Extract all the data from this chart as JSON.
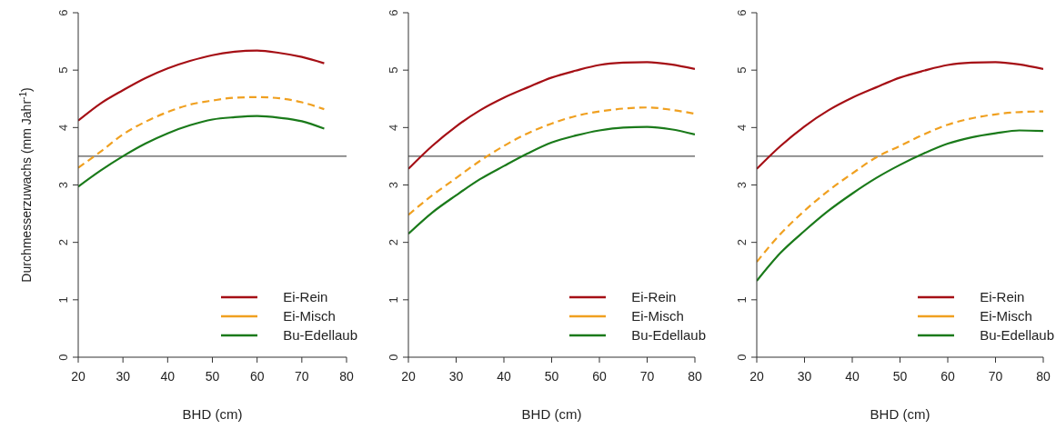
{
  "chart_data": [
    {
      "type": "line",
      "xlabel": "BHD (cm)",
      "ylabel": "Durchmesserzuwachs (mm Jahr$^{-1}$)",
      "x": [
        20,
        25,
        30,
        35,
        40,
        45,
        50,
        55,
        60,
        65,
        70,
        75
      ],
      "xlim": [
        20,
        80
      ],
      "xticks": [
        20,
        30,
        40,
        50,
        60,
        70,
        80
      ],
      "ylim": [
        0,
        6
      ],
      "yticks": [
        0,
        1,
        2,
        3,
        4,
        5,
        6
      ],
      "legend": "bottom right",
      "marker": "none",
      "grid": false,
      "series": [
        {
          "name": "Ei-Rein",
          "color": "#a50f15",
          "line_style": "solid",
          "values": [
            4.12,
            4.42,
            4.65,
            4.86,
            5.03,
            5.16,
            5.26,
            5.32,
            5.34,
            5.3,
            5.23,
            5.12
          ]
        },
        {
          "name": "Ei-Misch",
          "color": "#f0a020",
          "line_style": "dashed",
          "values": [
            3.3,
            3.58,
            3.88,
            4.1,
            4.27,
            4.4,
            4.47,
            4.52,
            4.53,
            4.51,
            4.44,
            4.32
          ]
        },
        {
          "name": "Bu-Edellaub",
          "color": "#1a7a1a",
          "line_style": "solid",
          "values": [
            2.97,
            3.25,
            3.5,
            3.72,
            3.9,
            4.04,
            4.14,
            4.18,
            4.2,
            4.17,
            4.11,
            3.98
          ]
        }
      ],
      "ref_lines": [
        {
          "axis": "y",
          "value": 3.5,
          "color": "#555555"
        }
      ]
    },
    {
      "type": "line",
      "xlabel": "BHD (cm)",
      "x": [
        20,
        25,
        30,
        35,
        40,
        45,
        50,
        55,
        60,
        65,
        70,
        75,
        80
      ],
      "xlim": [
        20,
        80
      ],
      "xticks": [
        20,
        30,
        40,
        50,
        60,
        70,
        80
      ],
      "ylim": [
        0,
        6
      ],
      "yticks": [
        0,
        1,
        2,
        3,
        4,
        5,
        6
      ],
      "legend": "bottom right",
      "marker": "none",
      "grid": false,
      "series": [
        {
          "name": "Ei-Rein",
          "color": "#a50f15",
          "line_style": "solid",
          "values": [
            3.28,
            3.68,
            4.02,
            4.3,
            4.52,
            4.7,
            4.87,
            4.99,
            5.09,
            5.13,
            5.14,
            5.1,
            5.02
          ]
        },
        {
          "name": "Ei-Misch",
          "color": "#f0a020",
          "line_style": "dashed",
          "values": [
            2.48,
            2.82,
            3.12,
            3.42,
            3.68,
            3.9,
            4.07,
            4.2,
            4.28,
            4.33,
            4.35,
            4.31,
            4.24
          ]
        },
        {
          "name": "Bu-Edellaub",
          "color": "#1a7a1a",
          "line_style": "solid",
          "values": [
            2.15,
            2.52,
            2.82,
            3.1,
            3.33,
            3.55,
            3.74,
            3.86,
            3.95,
            4.0,
            4.01,
            3.97,
            3.88
          ]
        }
      ],
      "ref_lines": [
        {
          "axis": "y",
          "value": 3.5,
          "color": "#555555"
        }
      ]
    },
    {
      "type": "line",
      "xlabel": "BHD (cm)",
      "x": [
        20,
        25,
        30,
        35,
        40,
        45,
        50,
        55,
        60,
        65,
        70,
        75,
        80
      ],
      "xlim": [
        20,
        80
      ],
      "xticks": [
        20,
        30,
        40,
        50,
        60,
        70,
        80
      ],
      "ylim": [
        0,
        6
      ],
      "yticks": [
        0,
        1,
        2,
        3,
        4,
        5,
        6
      ],
      "legend": "bottom right",
      "marker": "none",
      "grid": false,
      "series": [
        {
          "name": "Ei-Rein",
          "color": "#a50f15",
          "line_style": "solid",
          "values": [
            3.28,
            3.68,
            4.02,
            4.3,
            4.52,
            4.7,
            4.87,
            4.99,
            5.09,
            5.13,
            5.14,
            5.1,
            5.02
          ]
        },
        {
          "name": "Ei-Misch",
          "color": "#f0a020",
          "line_style": "dashed",
          "values": [
            1.66,
            2.15,
            2.55,
            2.9,
            3.2,
            3.48,
            3.68,
            3.88,
            4.05,
            4.16,
            4.23,
            4.27,
            4.28
          ]
        },
        {
          "name": "Bu-Edellaub",
          "color": "#1a7a1a",
          "line_style": "solid",
          "values": [
            1.33,
            1.82,
            2.2,
            2.55,
            2.85,
            3.12,
            3.35,
            3.55,
            3.72,
            3.83,
            3.9,
            3.95,
            3.94
          ]
        }
      ],
      "ref_lines": [
        {
          "axis": "y",
          "value": 3.5,
          "color": "#555555"
        }
      ]
    }
  ]
}
